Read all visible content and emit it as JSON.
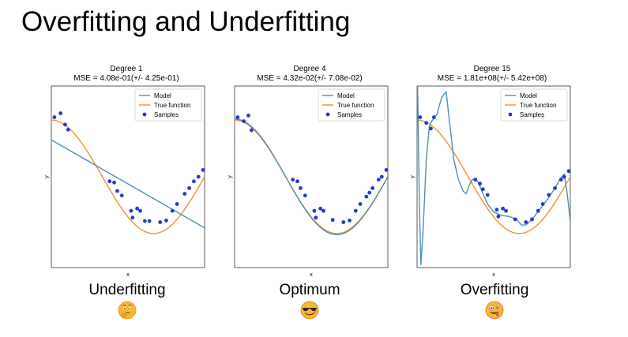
{
  "slide": {
    "title": "Overfitting and Underfitting"
  },
  "legend": {
    "model": "Model",
    "true_function": "True function",
    "samples": "Samples"
  },
  "colors": {
    "model": "#4f8fb5",
    "true_function": "#f2922d",
    "samples": "#2339d6"
  },
  "emojis": [
    "thinking-face",
    "smiling-face-with-sunglasses",
    "zany-face"
  ],
  "chart_data": [
    {
      "type": "line",
      "title": "Degree 1",
      "subtitle": "MSE = 4.08e-01(+/- 4.25e-01)",
      "xlabel": "x",
      "ylabel": "y",
      "caption": "Underfitting",
      "xlim": [
        0,
        1
      ],
      "ylim": [
        -1.6,
        1.6
      ],
      "legend_position": "top-right",
      "samples": [
        [
          0.02,
          1.05
        ],
        [
          0.06,
          1.12
        ],
        [
          0.09,
          0.92
        ],
        [
          0.11,
          0.83
        ],
        [
          0.38,
          -0.08
        ],
        [
          0.41,
          -0.1
        ],
        [
          0.43,
          -0.25
        ],
        [
          0.46,
          -0.33
        ],
        [
          0.52,
          -0.6
        ],
        [
          0.53,
          -0.72
        ],
        [
          0.56,
          -0.56
        ],
        [
          0.58,
          -0.6
        ],
        [
          0.61,
          -0.78
        ],
        [
          0.64,
          -0.78
        ],
        [
          0.71,
          -0.8
        ],
        [
          0.75,
          -0.77
        ],
        [
          0.79,
          -0.6
        ],
        [
          0.82,
          -0.48
        ],
        [
          0.87,
          -0.3
        ],
        [
          0.9,
          -0.2
        ],
        [
          0.93,
          -0.08
        ],
        [
          0.96,
          0.0
        ],
        [
          0.99,
          0.12
        ]
      ],
      "model": {
        "type": "linear",
        "coef": [
          0.65,
          -1.55
        ]
      }
    },
    {
      "type": "line",
      "title": "Degree 4",
      "subtitle": "MSE = 4.32e-02(+/- 7.08e-02)",
      "xlabel": "x",
      "ylabel": "y",
      "caption": "Optimum",
      "xlim": [
        0,
        1
      ],
      "ylim": [
        -1.6,
        1.6
      ],
      "legend_position": "top-right",
      "samples": [
        [
          0.02,
          1.05
        ],
        [
          0.06,
          0.98
        ],
        [
          0.09,
          1.08
        ],
        [
          0.11,
          0.82
        ],
        [
          0.38,
          -0.05
        ],
        [
          0.41,
          -0.08
        ],
        [
          0.43,
          -0.2
        ],
        [
          0.46,
          -0.33
        ],
        [
          0.52,
          -0.6
        ],
        [
          0.53,
          -0.72
        ],
        [
          0.56,
          -0.56
        ],
        [
          0.58,
          -0.6
        ],
        [
          0.64,
          -0.76
        ],
        [
          0.71,
          -0.8
        ],
        [
          0.75,
          -0.77
        ],
        [
          0.79,
          -0.6
        ],
        [
          0.82,
          -0.48
        ],
        [
          0.86,
          -0.35
        ],
        [
          0.88,
          -0.28
        ],
        [
          0.9,
          -0.2
        ],
        [
          0.94,
          -0.05
        ],
        [
          0.96,
          0.0
        ],
        [
          0.99,
          0.12
        ]
      ],
      "model": {
        "type": "true"
      }
    },
    {
      "type": "line",
      "title": "Degree 15",
      "subtitle": "MSE = 1.81e+08(+/- 5.42e+08)",
      "xlabel": "x",
      "ylabel": "y",
      "caption": "Overfitting",
      "xlim": [
        0,
        1
      ],
      "ylim": [
        -1.6,
        1.6
      ],
      "legend_position": "top-right",
      "samples": [
        [
          0.02,
          1.05
        ],
        [
          0.06,
          0.95
        ],
        [
          0.09,
          0.85
        ],
        [
          0.11,
          1.05
        ],
        [
          0.38,
          -0.05
        ],
        [
          0.41,
          -0.12
        ],
        [
          0.43,
          -0.22
        ],
        [
          0.46,
          -0.32
        ],
        [
          0.52,
          -0.58
        ],
        [
          0.53,
          -0.7
        ],
        [
          0.56,
          -0.56
        ],
        [
          0.58,
          -0.6
        ],
        [
          0.64,
          -0.75
        ],
        [
          0.71,
          -0.8
        ],
        [
          0.75,
          -0.75
        ],
        [
          0.79,
          -0.6
        ],
        [
          0.82,
          -0.48
        ],
        [
          0.86,
          -0.32
        ],
        [
          0.9,
          -0.2
        ],
        [
          0.94,
          -0.05
        ],
        [
          0.96,
          0.0
        ],
        [
          0.99,
          0.1
        ]
      ],
      "model": {
        "type": "points",
        "points": [
          [
            0.0,
            2.2
          ],
          [
            0.015,
            -0.5
          ],
          [
            0.025,
            -1.55
          ],
          [
            0.04,
            -0.9
          ],
          [
            0.06,
            0.3
          ],
          [
            0.08,
            0.9
          ],
          [
            0.1,
            1.0
          ],
          [
            0.13,
            1.1
          ],
          [
            0.16,
            1.4
          ],
          [
            0.19,
            1.5
          ],
          [
            0.21,
            1.0
          ],
          [
            0.24,
            0.3
          ],
          [
            0.27,
            -0.05
          ],
          [
            0.3,
            -0.25
          ],
          [
            0.32,
            -0.3
          ],
          [
            0.34,
            -0.15
          ],
          [
            0.36,
            -0.05
          ],
          [
            0.38,
            -0.03
          ],
          [
            0.4,
            -0.1
          ],
          [
            0.43,
            -0.3
          ],
          [
            0.46,
            -0.48
          ],
          [
            0.5,
            -0.62
          ],
          [
            0.55,
            -0.68
          ],
          [
            0.6,
            -0.7
          ],
          [
            0.65,
            -0.75
          ],
          [
            0.68,
            -0.85
          ],
          [
            0.71,
            -0.85
          ],
          [
            0.75,
            -0.75
          ],
          [
            0.8,
            -0.58
          ],
          [
            0.85,
            -0.4
          ],
          [
            0.9,
            -0.2
          ],
          [
            0.93,
            -0.05
          ],
          [
            0.96,
            0.05
          ],
          [
            0.98,
            -0.3
          ],
          [
            1.0,
            -0.8
          ]
        ]
      }
    }
  ]
}
